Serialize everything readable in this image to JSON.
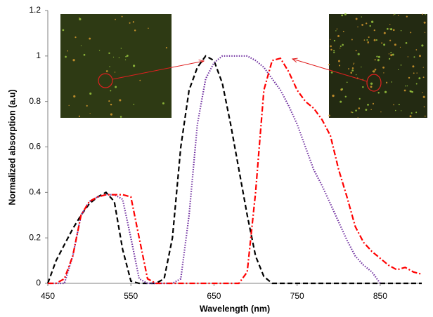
{
  "chart_data": {
    "type": "line",
    "x_label": "Wavelength (nm)",
    "y_label": "Normalized absorption (a.u)",
    "x": [
      450,
      460,
      470,
      480,
      490,
      500,
      510,
      520,
      530,
      540,
      550,
      560,
      570,
      580,
      590,
      600,
      610,
      620,
      630,
      640,
      650,
      660,
      670,
      680,
      690,
      700,
      710,
      720,
      730,
      740,
      750,
      760,
      770,
      780,
      790,
      800,
      810,
      820,
      830,
      840,
      850,
      860,
      870,
      880,
      890,
      900
    ],
    "series": [
      {
        "color": "#000000",
        "dash": "dashed",
        "values": [
          0,
          0.1,
          0.17,
          0.24,
          0.3,
          0.35,
          0.38,
          0.4,
          0.36,
          0.15,
          0.01,
          0,
          0,
          0,
          0.02,
          0.2,
          0.6,
          0.85,
          0.95,
          1.0,
          0.98,
          0.88,
          0.7,
          0.5,
          0.3,
          0.12,
          0.03,
          0,
          0,
          0,
          0,
          0,
          0,
          0,
          0,
          0,
          0,
          0,
          0,
          0,
          0,
          0,
          0,
          0,
          0,
          0
        ]
      },
      {
        "color": "#7030a0",
        "dash": "dotted",
        "values": [
          0,
          0,
          0,
          0.12,
          0.3,
          0.36,
          0.38,
          0.39,
          0.39,
          0.37,
          0.2,
          0.02,
          0,
          0,
          0,
          0,
          0.02,
          0.3,
          0.7,
          0.9,
          0.97,
          1.0,
          1.0,
          1.0,
          1.0,
          0.98,
          0.95,
          0.9,
          0.85,
          0.78,
          0.7,
          0.6,
          0.5,
          0.43,
          0.35,
          0.27,
          0.19,
          0.12,
          0.08,
          0.05,
          0,
          null,
          null,
          null,
          null,
          null
        ]
      },
      {
        "color": "#ff0000",
        "dash": "dashdot",
        "values": [
          0,
          0,
          0.02,
          0.12,
          0.3,
          0.36,
          0.38,
          0.39,
          0.39,
          0.39,
          0.38,
          0.2,
          0.02,
          0,
          0,
          0,
          0,
          0,
          0,
          0,
          0,
          0,
          0,
          0,
          0.05,
          0.4,
          0.85,
          0.98,
          0.99,
          0.93,
          0.85,
          0.8,
          0.77,
          0.72,
          0.65,
          0.5,
          0.38,
          0.25,
          0.18,
          0.14,
          0.11,
          0.08,
          0.06,
          0.07,
          0.05,
          0.04
        ]
      }
    ],
    "xlim": [
      450,
      900
    ],
    "xticks": [
      450,
      550,
      650,
      750,
      850
    ],
    "ylim": [
      0,
      1.2
    ],
    "yticks": [
      0,
      0.2,
      0.4,
      0.6,
      0.8,
      1,
      1.2
    ],
    "grid": false
  }
}
